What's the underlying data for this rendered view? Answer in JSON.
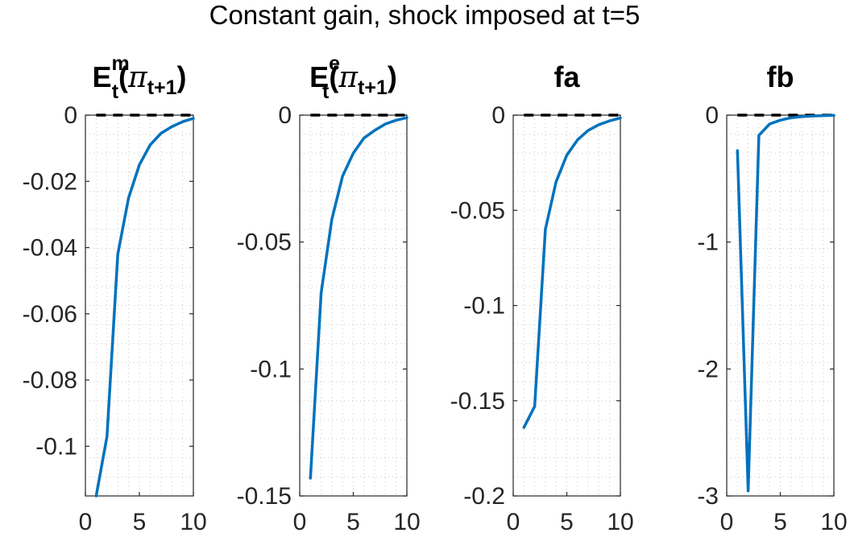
{
  "figure": {
    "title": "Constant gain, shock imposed at t=5"
  },
  "chart_data": [
    {
      "type": "line",
      "title": "E^m_t(π_{t+1})",
      "title_parts": {
        "base": "E",
        "sup": "m",
        "sub": "t",
        "open": "(",
        "pi": "π",
        "pisub": "t+1",
        "close": ")"
      },
      "xlim": [
        0,
        10
      ],
      "ylim": [
        -0.115,
        0
      ],
      "xticks": [
        0,
        5,
        10
      ],
      "xtick_labels": [
        "0",
        "5",
        "10"
      ],
      "yticks": [
        0,
        -0.02,
        -0.04,
        -0.06,
        -0.08,
        -0.1
      ],
      "ytick_labels": [
        "0",
        "-0.02",
        "-0.04",
        "-0.06",
        "-0.08",
        "-0.1"
      ],
      "grid": true,
      "x": [
        1,
        2,
        3,
        4,
        5,
        6,
        7,
        8,
        9,
        10
      ],
      "y": [
        -0.115,
        -0.097,
        -0.042,
        -0.025,
        -0.015,
        -0.009,
        -0.0055,
        -0.0035,
        -0.002,
        -0.001
      ],
      "reference_line": 0
    },
    {
      "type": "line",
      "title": "E^e_t(π_{t+1})",
      "title_parts": {
        "base": "E",
        "sup": "e",
        "sub": "t",
        "open": "(",
        "pi": "π",
        "pisub": "t+1",
        "close": ")"
      },
      "xlim": [
        0,
        10
      ],
      "ylim": [
        -0.15,
        0
      ],
      "xticks": [
        0,
        5,
        10
      ],
      "xtick_labels": [
        "0",
        "5",
        "10"
      ],
      "yticks": [
        0,
        -0.05,
        -0.1,
        -0.15
      ],
      "ytick_labels": [
        "0",
        "-0.05",
        "-0.1",
        "-0.15"
      ],
      "grid": true,
      "x": [
        1,
        2,
        3,
        4,
        5,
        6,
        7,
        8,
        9,
        10
      ],
      "y": [
        -0.143,
        -0.07,
        -0.041,
        -0.024,
        -0.015,
        -0.009,
        -0.006,
        -0.0035,
        -0.002,
        -0.001
      ],
      "reference_line": 0
    },
    {
      "type": "line",
      "title": "fa",
      "xlim": [
        0,
        10
      ],
      "ylim": [
        -0.2,
        0
      ],
      "xticks": [
        0,
        5,
        10
      ],
      "xtick_labels": [
        "0",
        "5",
        "10"
      ],
      "yticks": [
        0,
        -0.05,
        -0.1,
        -0.15,
        -0.2
      ],
      "ytick_labels": [
        "0",
        "-0.05",
        "-0.1",
        "-0.15",
        "-0.2"
      ],
      "grid": true,
      "x": [
        1,
        2,
        3,
        4,
        5,
        6,
        7,
        8,
        9,
        10
      ],
      "y": [
        -0.164,
        -0.153,
        -0.06,
        -0.035,
        -0.021,
        -0.013,
        -0.008,
        -0.005,
        -0.003,
        -0.0015
      ],
      "reference_line": 0
    },
    {
      "type": "line",
      "title": "fb",
      "xlim": [
        0,
        10
      ],
      "ylim": [
        -3,
        0
      ],
      "xticks": [
        0,
        5,
        10
      ],
      "xtick_labels": [
        "0",
        "5",
        "10"
      ],
      "yticks": [
        0,
        -1,
        -2,
        -3
      ],
      "ytick_labels": [
        "0",
        "-1",
        "-2",
        "-3"
      ],
      "grid": true,
      "x": [
        1,
        2,
        3,
        4,
        5,
        6,
        7,
        8,
        9,
        10
      ],
      "y": [
        -0.28,
        -2.96,
        -0.16,
        -0.07,
        -0.04,
        -0.02,
        -0.012,
        -0.007,
        -0.004,
        -0.002
      ],
      "reference_line": 0
    }
  ]
}
